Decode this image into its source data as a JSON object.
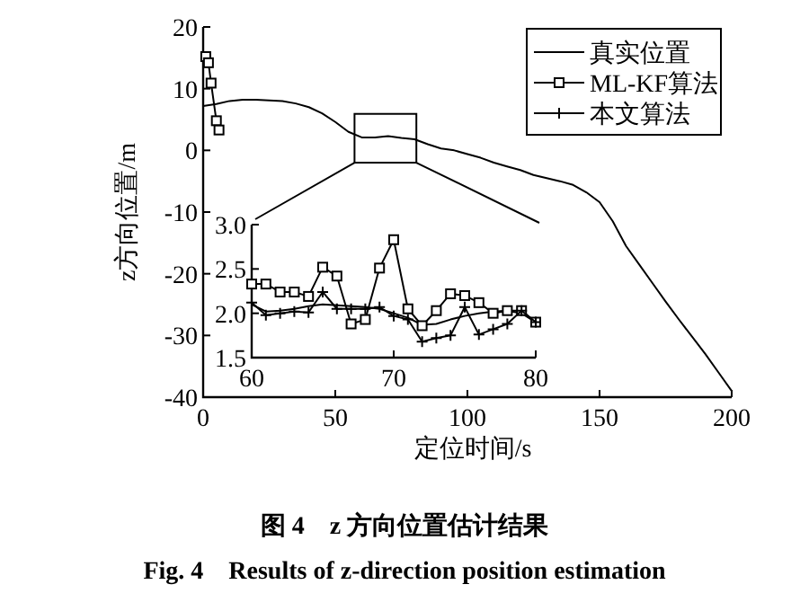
{
  "chart_data": [
    {
      "type": "line",
      "title": "图 4　z 方向位置估计结果",
      "subtitle": "Fig. 4　Results of z-direction position estimation",
      "xlabel": "定位时间/s",
      "ylabel": "z方向位置/m",
      "xlim": [
        0,
        200
      ],
      "ylim": [
        -40,
        20
      ],
      "xticks": [
        0,
        50,
        100,
        150,
        200
      ],
      "yticks": [
        -40,
        -30,
        -20,
        -10,
        0,
        10,
        20
      ],
      "legend": "top right",
      "series": [
        {
          "name": "真实位置",
          "color": "#000000",
          "marker": "none",
          "x": [
            0,
            5,
            10,
            15,
            20,
            25,
            30,
            35,
            40,
            45,
            50,
            55,
            60,
            65,
            70,
            75,
            80,
            85,
            90,
            95,
            100,
            105,
            110,
            115,
            120,
            125,
            130,
            135,
            140,
            145,
            150,
            155,
            160,
            165,
            170,
            175,
            180,
            185,
            190,
            195,
            200
          ],
          "values": [
            7.2,
            7.5,
            8.0,
            8.2,
            8.2,
            8.1,
            8.0,
            7.6,
            7.0,
            6.0,
            4.6,
            3.0,
            2.1,
            2.1,
            2.3,
            2.0,
            1.8,
            1.0,
            0.3,
            0,
            -0.6,
            -1.2,
            -2.0,
            -2.6,
            -3.2,
            -4.0,
            -4.5,
            -5.0,
            -5.6,
            -6.8,
            -8.4,
            -11.5,
            -15.5,
            -18.5,
            -21.5,
            -24.5,
            -27.4,
            -30.2,
            -33.0,
            -36.0,
            -39.0
          ]
        },
        {
          "name": "ML-KF算法",
          "color": "#000000",
          "marker": "square",
          "x": [
            1,
            2,
            3,
            5,
            6
          ],
          "values": [
            15.2,
            14.2,
            10.9,
            4.8,
            3.3
          ]
        },
        {
          "name": "本文算法",
          "color": "#000000",
          "marker": "cross",
          "values": [
            null
          ]
        }
      ]
    },
    {
      "type": "line",
      "xlim": [
        60,
        80
      ],
      "ylim": [
        1.5,
        3.0
      ],
      "xticks": [
        60,
        70,
        80
      ],
      "yticks": [
        {
          "value": 1.5,
          "label": "1.5"
        },
        {
          "value": 2,
          "label": "2.0"
        },
        {
          "value": 2.5,
          "label": "2.5"
        },
        {
          "value": 3,
          "label": "3.0"
        }
      ],
      "x": [
        60,
        61,
        62,
        63,
        64,
        65,
        66,
        67,
        68,
        69,
        70,
        71,
        72,
        73,
        74,
        75,
        76,
        77,
        78,
        79,
        80
      ],
      "series": [
        {
          "color": "#000000",
          "marker": "none",
          "values": [
            2.1,
            2.02,
            2.03,
            2.05,
            2.08,
            2.1,
            2.09,
            2.08,
            2.07,
            2.05,
            2.0,
            1.95,
            1.87,
            1.88,
            1.93,
            1.97,
            2.0,
            2.02,
            2.03,
            2.0,
            1.9
          ]
        },
        {
          "color": "#000000",
          "marker": "square",
          "values": [
            2.33,
            2.33,
            2.24,
            2.24,
            2.19,
            2.52,
            2.42,
            1.88,
            1.93,
            2.51,
            2.83,
            2.05,
            1.86,
            2.03,
            2.22,
            2.2,
            2.12,
            2.0,
            2.03,
            2.03,
            1.9
          ]
        },
        {
          "color": "#000000",
          "marker": "cross",
          "values": [
            2.12,
            1.98,
            2.0,
            2.02,
            2.01,
            2.24,
            2.05,
            2.05,
            2.05,
            2.07,
            1.97,
            1.93,
            1.68,
            1.72,
            1.75,
            2.07,
            1.76,
            1.82,
            1.88,
            2.03,
            1.9
          ]
        }
      ]
    }
  ]
}
